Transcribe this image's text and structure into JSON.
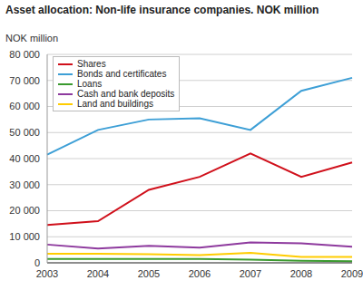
{
  "chart_data": {
    "type": "line",
    "title": "Asset allocation: Non-life insurance companies. NOK million",
    "y_label": "NOK million",
    "categories": [
      "2003",
      "2004",
      "2005",
      "2006",
      "2007",
      "2008",
      "2009"
    ],
    "series": [
      {
        "name": "Shares",
        "color": "#d0101b",
        "values": [
          14500,
          16000,
          28000,
          33000,
          42000,
          33000,
          38500
        ]
      },
      {
        "name": "Bonds and certificates",
        "color": "#3d9fd6",
        "values": [
          41500,
          51000,
          55000,
          55500,
          51000,
          66000,
          71000
        ]
      },
      {
        "name": "Loans",
        "color": "#3a9a2e",
        "values": [
          1500,
          1500,
          1500,
          1500,
          1200,
          800,
          600
        ]
      },
      {
        "name": "Cash and bank deposits",
        "color": "#8e3a9e",
        "values": [
          7000,
          5500,
          6500,
          5800,
          7800,
          7500,
          6200
        ]
      },
      {
        "name": "Land and buildings",
        "color": "#ffcc00",
        "values": [
          3500,
          3500,
          3300,
          3000,
          3800,
          2300,
          2300
        ]
      }
    ],
    "ylim": [
      0,
      80000
    ],
    "yticks": [
      0,
      {
        "value": 10000,
        "label": "10 000"
      },
      {
        "value": 20000,
        "label": "20 000"
      },
      {
        "value": 30000,
        "label": "30 000"
      },
      {
        "value": 40000,
        "label": "40 000"
      },
      {
        "value": 50000,
        "label": "50 000"
      },
      {
        "value": 60000,
        "label": "60 000"
      },
      {
        "value": 70000,
        "label": "70 000"
      },
      {
        "value": 80000,
        "label": "80 000"
      }
    ],
    "grid": true,
    "legend": "upper left"
  }
}
